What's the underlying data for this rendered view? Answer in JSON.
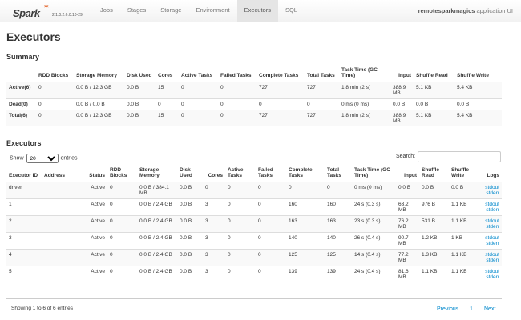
{
  "nav": {
    "logo": "Spark",
    "version": "2.1.0.2.6.0.10-29",
    "tabs": [
      "Jobs",
      "Stages",
      "Storage",
      "Environment",
      "Executors",
      "SQL"
    ],
    "active_tab": "Executors",
    "app_name": "remotesparkmagics",
    "app_suffix": "application UI"
  },
  "page_title": "Executors",
  "summary": {
    "title": "Summary",
    "headers": [
      "",
      "RDD Blocks",
      "Storage Memory",
      "Disk Used",
      "Cores",
      "Active Tasks",
      "Failed Tasks",
      "Complete Tasks",
      "Total Tasks",
      "Task Time (GC Time)",
      "Input",
      "Shuffle Read",
      "Shuffle Write"
    ],
    "rows": [
      [
        "Active(6)",
        "0",
        "0.0 B / 12.3 GB",
        "0.0 B",
        "15",
        "0",
        "0",
        "727",
        "727",
        "1.8 min (2 s)",
        "388.9 MB",
        "5.1 KB",
        "5.4 KB"
      ],
      [
        "Dead(0)",
        "0",
        "0.0 B / 0.0 B",
        "0.0 B",
        "0",
        "0",
        "0",
        "0",
        "0",
        "0 ms (0 ms)",
        "0.0 B",
        "0.0 B",
        "0.0 B"
      ],
      [
        "Total(6)",
        "0",
        "0.0 B / 12.3 GB",
        "0.0 B",
        "15",
        "0",
        "0",
        "727",
        "727",
        "1.8 min (2 s)",
        "388.9 MB",
        "5.1 KB",
        "5.4 KB"
      ]
    ]
  },
  "executors": {
    "title": "Executors",
    "show_label": "Show",
    "page_size": "20",
    "entries_label": "entries",
    "search_label": "Search:",
    "search_value": "",
    "headers": [
      "Executor ID",
      "Address",
      "Status",
      "RDD Blocks",
      "Storage Memory",
      "Disk Used",
      "Cores",
      "Active Tasks",
      "Failed Tasks",
      "Complete Tasks",
      "Total Tasks",
      "Task Time (GC Time)",
      "Input",
      "Shuffle Read",
      "Shuffle Write",
      "Logs"
    ],
    "rows": [
      [
        "driver",
        "",
        "Active",
        "0",
        "0.0 B / 384.1 MB",
        "0.0 B",
        "0",
        "0",
        "0",
        "0",
        "0",
        "0 ms (0 ms)",
        "0.0 B",
        "0.0 B",
        "0.0 B"
      ],
      [
        "1",
        "",
        "Active",
        "0",
        "0.0 B / 2.4 GB",
        "0.0 B",
        "3",
        "0",
        "0",
        "160",
        "160",
        "24 s (0.3 s)",
        "63.2 MB",
        "976 B",
        "1.1 KB"
      ],
      [
        "2",
        "",
        "Active",
        "0",
        "0.0 B / 2.4 GB",
        "0.0 B",
        "3",
        "0",
        "0",
        "163",
        "163",
        "23 s (0.3 s)",
        "76.2 MB",
        "531 B",
        "1.1 KB"
      ],
      [
        "3",
        "",
        "Active",
        "0",
        "0.0 B / 2.4 GB",
        "0.0 B",
        "3",
        "0",
        "0",
        "140",
        "140",
        "26 s (0.4 s)",
        "90.7 MB",
        "1.2 KB",
        "1 KB"
      ],
      [
        "4",
        "",
        "Active",
        "0",
        "0.0 B / 2.4 GB",
        "0.0 B",
        "3",
        "0",
        "0",
        "125",
        "125",
        "14 s (0.4 s)",
        "77.2 MB",
        "1.3 KB",
        "1.1 KB"
      ],
      [
        "5",
        "",
        "Active",
        "0",
        "0.0 B / 2.4 GB",
        "0.0 B",
        "3",
        "0",
        "0",
        "139",
        "139",
        "24 s (0.4 s)",
        "81.6 MB",
        "1.1 KB",
        "1.1 KB"
      ]
    ],
    "log_links": [
      "stdout",
      "stderr"
    ],
    "info": "Showing 1 to 6 of 6 entries",
    "pagination": {
      "previous": "Previous",
      "page": "1",
      "next": "Next"
    }
  }
}
